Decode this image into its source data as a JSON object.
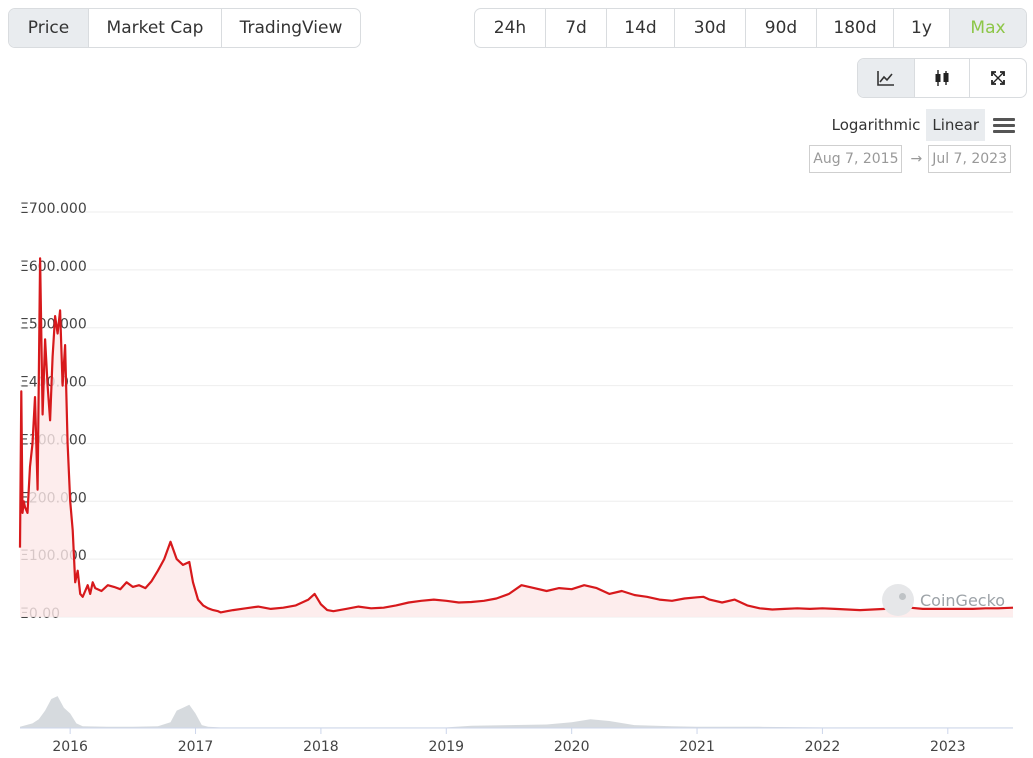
{
  "type_tabs": [
    {
      "label": "Price",
      "active": true
    },
    {
      "label": "Market Cap",
      "active": false
    },
    {
      "label": "TradingView",
      "active": false
    }
  ],
  "period_tabs": [
    {
      "label": "24h"
    },
    {
      "label": "7d"
    },
    {
      "label": "14d"
    },
    {
      "label": "30d"
    },
    {
      "label": "90d"
    },
    {
      "label": "180d"
    },
    {
      "label": "1y"
    },
    {
      "label": "Max",
      "active": true
    }
  ],
  "view_tabs": [
    {
      "name": "line-chart-icon",
      "active": true
    },
    {
      "name": "candlestick-icon",
      "active": false
    },
    {
      "name": "fullscreen-icon",
      "active": false
    }
  ],
  "scale": {
    "log_label": "Logarithmic",
    "linear_label": "Linear",
    "active": "Linear"
  },
  "date_range": {
    "from": "Aug 7, 2015",
    "arrow": "→",
    "to": "Jul 7, 2023"
  },
  "watermark": "CoinGecko",
  "colors": {
    "line": "#d7191c",
    "area": "#fde8e8",
    "grid": "#eeeeee",
    "volume": "#cfd4d8",
    "active_period": "#8dc647"
  },
  "chart_data": {
    "type": "area",
    "y_tick_labels": [
      "Ξ700.000",
      "Ξ600.000",
      "Ξ500.000",
      "Ξ400.000",
      "Ξ300.000",
      "Ξ200.000",
      "Ξ100.000",
      "Ξ0.00"
    ],
    "y_ticks": [
      700,
      600,
      500,
      400,
      300,
      200,
      100,
      0
    ],
    "ylim": [
      0,
      700
    ],
    "x_tick_labels": [
      "2016",
      "2017",
      "2018",
      "2019",
      "2020",
      "2021",
      "2022",
      "2023"
    ],
    "x_ticks": [
      2016,
      2017,
      2018,
      2019,
      2020,
      2021,
      2022,
      2023
    ],
    "xlim": [
      2015.6,
      2023.52
    ],
    "series": [
      {
        "x": [
          2015.6,
          2015.61,
          2015.62,
          2015.63,
          2015.64,
          2015.66,
          2015.68,
          2015.7,
          2015.72,
          2015.74,
          2015.76,
          2015.78,
          2015.8,
          2015.82,
          2015.84,
          2015.86,
          2015.88,
          2015.9,
          2015.92,
          2015.94,
          2015.96,
          2015.98,
          2016.0,
          2016.02,
          2016.04,
          2016.06,
          2016.08,
          2016.1,
          2016.12,
          2016.14,
          2016.16,
          2016.18,
          2016.2,
          2016.25,
          2016.3,
          2016.35,
          2016.4,
          2016.45,
          2016.5,
          2016.55,
          2016.6,
          2016.65,
          2016.7,
          2016.75,
          2016.8,
          2016.85,
          2016.9,
          2016.95,
          2016.98,
          2017.02,
          2017.06,
          2017.1,
          2017.14,
          2017.18,
          2017.2,
          2017.25,
          2017.3,
          2017.4,
          2017.5,
          2017.6,
          2017.7,
          2017.8,
          2017.9,
          2017.95,
          2018.0,
          2018.05,
          2018.1,
          2018.2,
          2018.3,
          2018.4,
          2018.5,
          2018.6,
          2018.7,
          2018.8,
          2018.9,
          2019.0,
          2019.1,
          2019.2,
          2019.3,
          2019.4,
          2019.5,
          2019.6,
          2019.7,
          2019.8,
          2019.9,
          2020.0,
          2020.1,
          2020.2,
          2020.3,
          2020.4,
          2020.5,
          2020.6,
          2020.7,
          2020.8,
          2020.9,
          2021.0,
          2021.05,
          2021.1,
          2021.2,
          2021.3,
          2021.4,
          2021.5,
          2021.6,
          2021.7,
          2021.8,
          2021.9,
          2022.0,
          2022.1,
          2022.2,
          2022.3,
          2022.4,
          2022.5,
          2022.6,
          2022.7,
          2022.8,
          2022.9,
          2023.0,
          2023.1,
          2023.2,
          2023.3,
          2023.4,
          2023.52
        ],
        "y": [
          120,
          390,
          180,
          200,
          190,
          180,
          260,
          300,
          380,
          220,
          620,
          350,
          480,
          400,
          340,
          450,
          520,
          490,
          530,
          400,
          470,
          300,
          200,
          150,
          60,
          80,
          40,
          35,
          45,
          55,
          40,
          60,
          50,
          45,
          55,
          52,
          48,
          60,
          52,
          55,
          50,
          62,
          80,
          100,
          130,
          100,
          90,
          95,
          60,
          30,
          20,
          15,
          12,
          10,
          8,
          10,
          12,
          15,
          18,
          14,
          16,
          20,
          30,
          40,
          22,
          12,
          10,
          14,
          18,
          15,
          16,
          20,
          25,
          28,
          30,
          28,
          25,
          26,
          28,
          32,
          40,
          55,
          50,
          45,
          50,
          48,
          55,
          50,
          40,
          45,
          38,
          35,
          30,
          28,
          32,
          34,
          35,
          30,
          25,
          30,
          20,
          15,
          13,
          14,
          15,
          14,
          15,
          14,
          13,
          12,
          13,
          14,
          20,
          16,
          14,
          14,
          14,
          14,
          14,
          15,
          15,
          16
        ]
      }
    ],
    "volume": {
      "x": [
        2015.6,
        2015.7,
        2015.75,
        2015.8,
        2015.85,
        2015.9,
        2015.95,
        2016.0,
        2016.05,
        2016.1,
        2016.3,
        2016.5,
        2016.7,
        2016.8,
        2016.85,
        2016.9,
        2016.95,
        2017.0,
        2017.05,
        2017.1,
        2017.2,
        2017.5,
        2018.0,
        2018.5,
        2019.0,
        2019.2,
        2019.5,
        2019.8,
        2020.0,
        2020.15,
        2020.3,
        2020.5,
        2020.8,
        2021.0,
        2021.5,
        2022.0,
        2022.5,
        2023.0,
        2023.52
      ],
      "y": [
        0.02,
        0.08,
        0.15,
        0.3,
        0.5,
        0.55,
        0.35,
        0.25,
        0.08,
        0.03,
        0.02,
        0.02,
        0.03,
        0.1,
        0.3,
        0.35,
        0.4,
        0.25,
        0.05,
        0.02,
        0.01,
        0.01,
        0.01,
        0.01,
        0.01,
        0.04,
        0.05,
        0.06,
        0.1,
        0.15,
        0.12,
        0.05,
        0.03,
        0.02,
        0.02,
        0.01,
        0.01,
        0.01,
        0.01
      ]
    },
    "grid": true,
    "legend": "none"
  }
}
